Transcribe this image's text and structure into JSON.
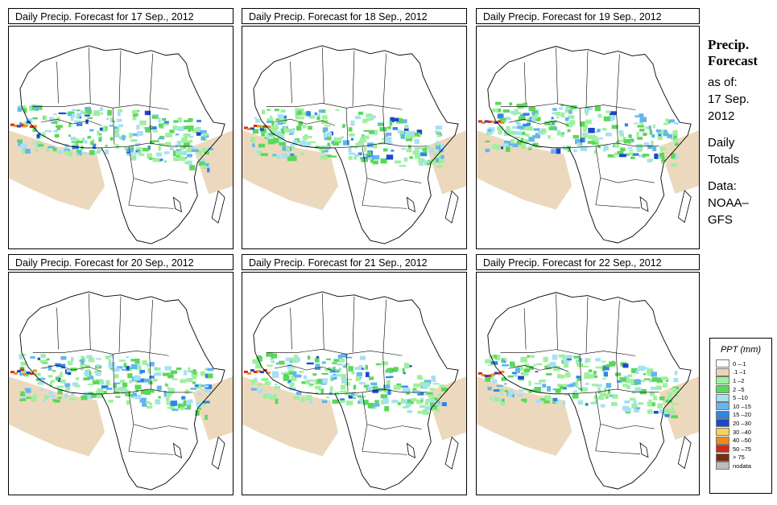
{
  "panels": [
    {
      "title": "Daily Precip. Forecast for  17 Sep., 2012"
    },
    {
      "title": "Daily Precip. Forecast for  18 Sep., 2012"
    },
    {
      "title": "Daily Precip. Forecast for  19 Sep., 2012"
    },
    {
      "title": "Daily Precip. Forecast for  20 Sep., 2012"
    },
    {
      "title": "Daily Precip. Forecast for  21 Sep., 2012"
    },
    {
      "title": "Daily Precip. Forecast for  22 Sep., 2012"
    }
  ],
  "sidebar": {
    "heading_1": "Precip.",
    "heading_2": "Forecast",
    "asof_1": "as of:",
    "asof_2": "17 Sep.",
    "asof_3": "2012",
    "type_1": "Daily",
    "type_2": "Totals",
    "data_1": "Data:",
    "data_2": "NOAA–",
    "data_3": "GFS"
  },
  "legend": {
    "title": "PPT (mm)",
    "items": [
      {
        "label": "0 –.1",
        "color": "#ffffff"
      },
      {
        "label": ".1 –1",
        "color": "#ead5b6"
      },
      {
        "label": "1 –2",
        "color": "#9ef09e"
      },
      {
        "label": "2 –5",
        "color": "#5ad85a"
      },
      {
        "label": "5 –10",
        "color": "#a6e0f4"
      },
      {
        "label": "10 –15",
        "color": "#62b6f0"
      },
      {
        "label": "15 –20",
        "color": "#2f84ea"
      },
      {
        "label": "20 –30",
        "color": "#1a48cc"
      },
      {
        "label": "30 –40",
        "color": "#f3d35a"
      },
      {
        "label": "40 –50",
        "color": "#f08a1e"
      },
      {
        "label": "50 –75",
        "color": "#d42a16"
      },
      {
        "label": "> 75",
        "color": "#7a2a14"
      },
      {
        "label": "nodata",
        "color": "#bdbdbd"
      }
    ]
  }
}
